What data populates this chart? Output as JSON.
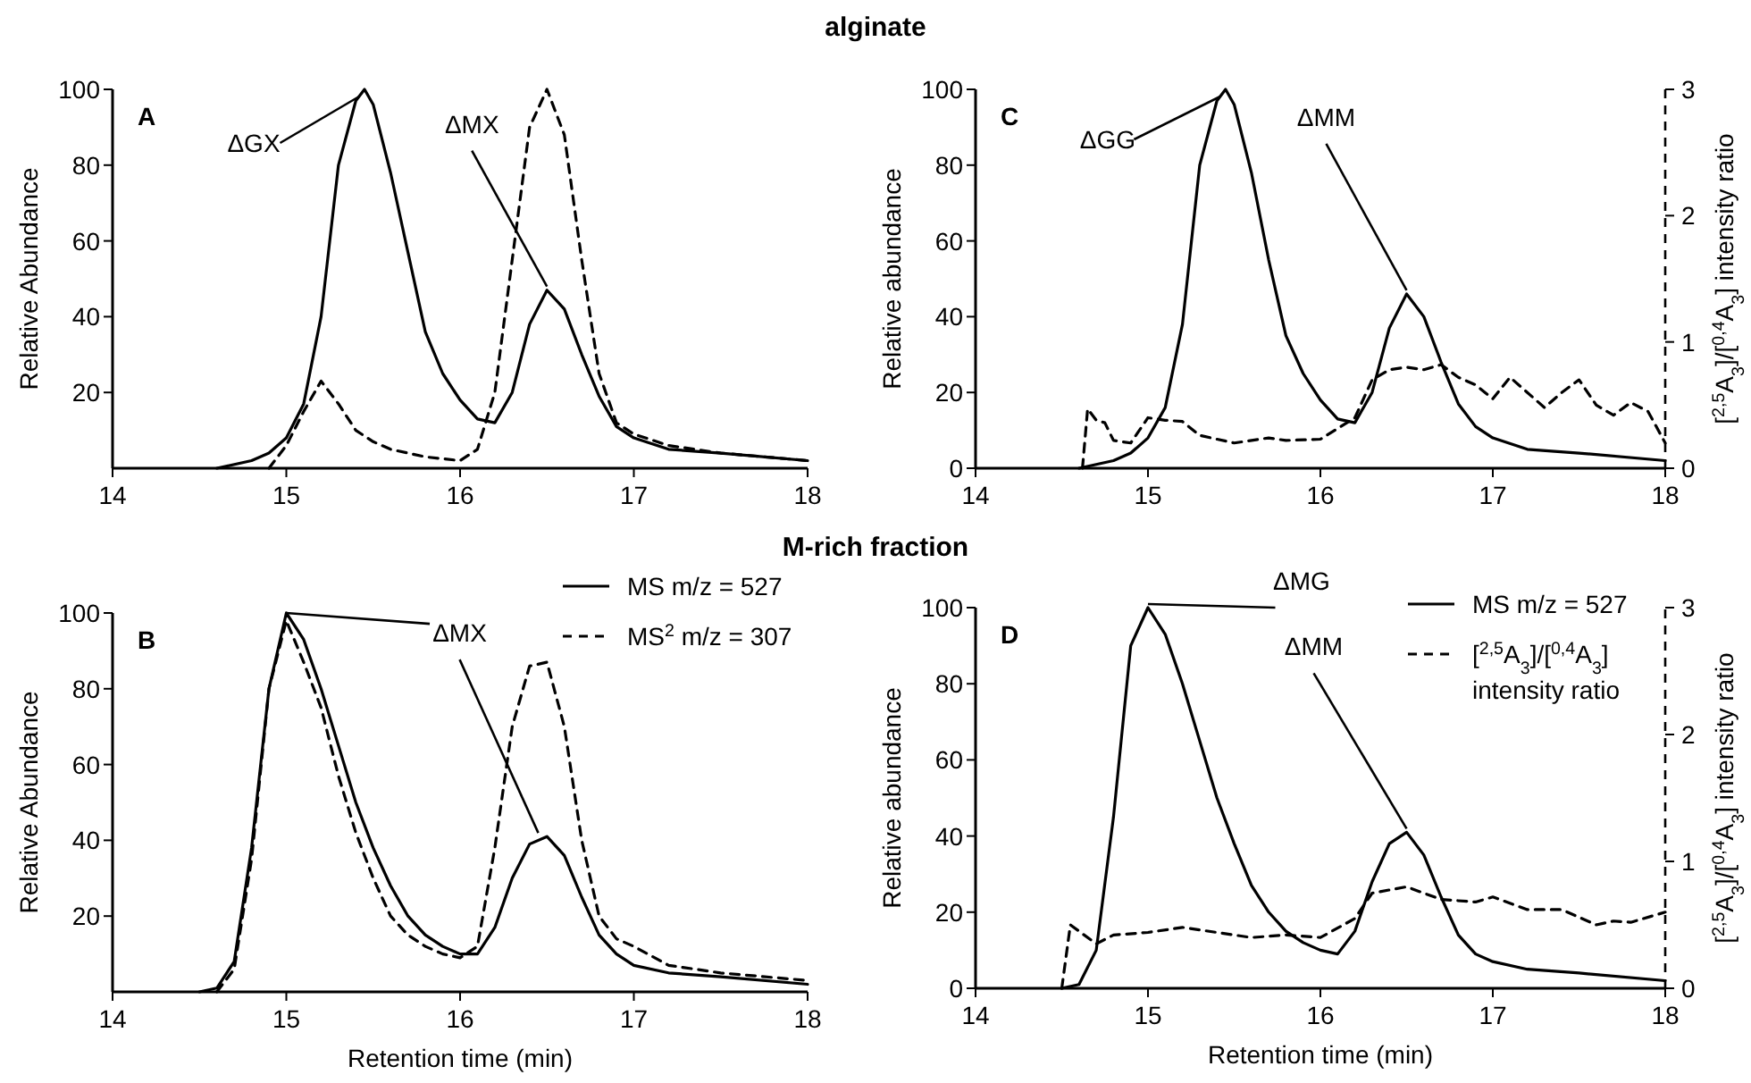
{
  "chart_data": [
    {
      "type": "line",
      "title": "alginate",
      "ylabel": "Relative Abundance",
      "xlim": [
        14,
        18
      ],
      "xticks": [
        14,
        15,
        16,
        17,
        18
      ],
      "ylim": [
        0,
        100
      ],
      "yticks": [
        20,
        40,
        60,
        80,
        100
      ],
      "annotations": [
        "A",
        {
          "text": "ΔGX",
          "x": 15.45,
          "y": 100
        },
        {
          "text": "ΔMX",
          "x": 16.5,
          "y": 47
        }
      ],
      "series": [
        {
          "color": "#000000",
          "line_style": "solid",
          "x": [
            14.6,
            14.8,
            14.9,
            15.0,
            15.1,
            15.2,
            15.3,
            15.4,
            15.45,
            15.5,
            15.6,
            15.7,
            15.8,
            15.9,
            16.0,
            16.1,
            16.2,
            16.3,
            16.4,
            16.5,
            16.6,
            16.7,
            16.8,
            16.9,
            17.0,
            17.2,
            17.5,
            18
          ],
          "values": [
            0,
            2,
            4,
            8,
            17,
            40,
            80,
            97,
            100,
            96,
            78,
            57,
            36,
            25,
            18,
            13,
            12,
            20,
            38,
            47,
            42,
            30,
            19,
            11,
            8,
            5,
            4,
            2
          ]
        },
        {
          "color": "#000000",
          "line_style": "dashed",
          "x": [
            14.9,
            15.0,
            15.1,
            15.2,
            15.3,
            15.4,
            15.5,
            15.6,
            15.8,
            16.0,
            16.1,
            16.2,
            16.3,
            16.4,
            16.5,
            16.6,
            16.7,
            16.8,
            16.9,
            17.0,
            17.2,
            17.5,
            18
          ],
          "values": [
            0,
            6,
            15,
            23,
            17,
            10,
            7,
            5,
            3,
            2,
            5,
            20,
            55,
            90,
            100,
            88,
            55,
            25,
            12,
            9,
            6,
            4,
            2
          ]
        }
      ]
    },
    {
      "type": "line",
      "ylabel": "Relative abundance",
      "y2label": "[$^{2,5}$A$_{3}$]/[$^{0,4}$A$_{3}$] intensity ratio",
      "xlim": [
        14,
        18
      ],
      "xticks": [
        14,
        15,
        16,
        17,
        18
      ],
      "ylim": [
        0,
        100
      ],
      "yticks": [
        0,
        20,
        40,
        60,
        80,
        100
      ],
      "y2lim": [
        0,
        3
      ],
      "y2ticks": [
        0,
        1,
        2,
        3
      ],
      "annotations": [
        "C",
        {
          "text": "ΔGG",
          "x": 15.45,
          "y": 100
        },
        {
          "text": "ΔMM",
          "x": 16.5,
          "y": 46
        }
      ],
      "series": [
        {
          "color": "#000000",
          "line_style": "solid",
          "x": [
            14.6,
            14.8,
            14.9,
            15.0,
            15.1,
            15.2,
            15.3,
            15.4,
            15.45,
            15.5,
            15.6,
            15.7,
            15.8,
            15.9,
            16.0,
            16.1,
            16.2,
            16.3,
            16.4,
            16.5,
            16.6,
            16.7,
            16.8,
            16.9,
            17.0,
            17.2,
            17.5,
            18
          ],
          "values": [
            0,
            2,
            4,
            8,
            16,
            38,
            80,
            97,
            100,
            96,
            78,
            55,
            35,
            25,
            18,
            13,
            12,
            20,
            37,
            46,
            40,
            28,
            17,
            11,
            8,
            5,
            4,
            2
          ]
        },
        {
          "color": "#000000",
          "line_style": "dashed",
          "axis": "y2",
          "x": [
            14.62,
            14.65,
            14.7,
            14.75,
            14.8,
            14.9,
            15.0,
            15.1,
            15.2,
            15.3,
            15.5,
            15.7,
            15.8,
            16.0,
            16.2,
            16.3,
            16.4,
            16.5,
            16.6,
            16.7,
            16.8,
            16.9,
            17.0,
            17.1,
            17.2,
            17.3,
            17.4,
            17.5,
            17.6,
            17.7,
            17.8,
            17.9,
            18
          ],
          "values": [
            0,
            0.47,
            0.38,
            0.36,
            0.22,
            0.2,
            0.4,
            0.38,
            0.37,
            0.26,
            0.2,
            0.24,
            0.22,
            0.23,
            0.4,
            0.7,
            0.78,
            0.8,
            0.78,
            0.82,
            0.72,
            0.66,
            0.55,
            0.72,
            0.6,
            0.48,
            0.6,
            0.7,
            0.5,
            0.42,
            0.52,
            0.45,
            0.2
          ]
        }
      ]
    },
    {
      "type": "line",
      "title": "M-rich fraction",
      "xlabel": "Retention time (min)",
      "ylabel": "Relative Abundance",
      "xlim": [
        14,
        18
      ],
      "xticks": [
        14,
        15,
        16,
        17,
        18
      ],
      "ylim": [
        0,
        100
      ],
      "yticks": [
        20,
        40,
        60,
        80,
        100
      ],
      "legend": "top right",
      "annotations": [
        "B",
        {
          "text": "ΔMX",
          "x": 16.45,
          "y": 41
        }
      ],
      "series": [
        {
          "name": "MS m/z = 527",
          "color": "#000000",
          "line_style": "solid",
          "x": [
            14.5,
            14.6,
            14.7,
            14.8,
            14.9,
            15.0,
            15.1,
            15.2,
            15.3,
            15.4,
            15.5,
            15.6,
            15.7,
            15.8,
            15.9,
            16.0,
            16.1,
            16.2,
            16.3,
            16.4,
            16.5,
            16.6,
            16.7,
            16.8,
            16.9,
            17.0,
            17.2,
            17.5,
            18
          ],
          "values": [
            0,
            1,
            8,
            38,
            80,
            100,
            93,
            80,
            65,
            50,
            38,
            28,
            20,
            15,
            12,
            10,
            10,
            17,
            30,
            39,
            41,
            36,
            25,
            15,
            10,
            7,
            5,
            4,
            2
          ]
        },
        {
          "name": "MS$^{2}$ m/z = 307",
          "color": "#000000",
          "line_style": "dashed",
          "x": [
            14.6,
            14.7,
            14.8,
            14.9,
            15.0,
            15.1,
            15.2,
            15.3,
            15.4,
            15.5,
            15.6,
            15.7,
            15.8,
            15.9,
            16.0,
            16.1,
            16.2,
            16.3,
            16.4,
            16.5,
            16.6,
            16.7,
            16.8,
            16.9,
            17.0,
            17.2,
            17.5,
            18
          ],
          "values": [
            0,
            6,
            35,
            80,
            98,
            87,
            75,
            57,
            42,
            30,
            20,
            15,
            12,
            10,
            9,
            12,
            38,
            70,
            86,
            87,
            70,
            40,
            20,
            14,
            12,
            7,
            5,
            3
          ]
        }
      ]
    },
    {
      "type": "line",
      "xlabel": "Retention time (min)",
      "ylabel": "Relative abundance",
      "y2label": "[$^{2,5}$A$_{3}$]/[$^{0,4}$A$_{3}$] intensity ratio",
      "xlim": [
        14,
        18
      ],
      "xticks": [
        14,
        15,
        16,
        17,
        18
      ],
      "ylim": [
        0,
        100
      ],
      "yticks": [
        0,
        20,
        40,
        60,
        80,
        100
      ],
      "y2lim": [
        0,
        3
      ],
      "y2ticks": [
        0,
        1,
        2,
        3
      ],
      "legend": "top right",
      "annotations": [
        "D",
        {
          "text": "ΔMG",
          "x": 15.0,
          "y": 100
        },
        {
          "text": "ΔMM",
          "x": 16.5,
          "y": 41
        }
      ],
      "series": [
        {
          "name": "MS m/z = 527",
          "color": "#000000",
          "line_style": "solid",
          "x": [
            14.5,
            14.6,
            14.7,
            14.8,
            14.9,
            15.0,
            15.1,
            15.2,
            15.3,
            15.4,
            15.5,
            15.6,
            15.7,
            15.8,
            15.9,
            16.0,
            16.1,
            16.2,
            16.3,
            16.4,
            16.5,
            16.6,
            16.7,
            16.8,
            16.9,
            17.0,
            17.2,
            17.5,
            18
          ],
          "values": [
            0,
            1,
            10,
            45,
            90,
            100,
            93,
            80,
            65,
            50,
            38,
            27,
            20,
            15,
            12,
            10,
            9,
            15,
            28,
            38,
            41,
            35,
            24,
            14,
            9,
            7,
            5,
            4,
            2
          ]
        },
        {
          "name": "[$^{2,5}$A$_{3}$]/[$^{0,4}$A$_{3}$] intensity ratio",
          "color": "#000000",
          "line_style": "dashed",
          "axis": "y2",
          "x": [
            14.5,
            14.55,
            14.6,
            14.7,
            14.8,
            15.0,
            15.2,
            15.4,
            15.6,
            15.8,
            16.0,
            16.2,
            16.3,
            16.5,
            16.7,
            16.9,
            17.0,
            17.2,
            17.4,
            17.6,
            17.7,
            17.8,
            18
          ],
          "values": [
            0,
            0.5,
            0.45,
            0.35,
            0.42,
            0.44,
            0.48,
            0.44,
            0.4,
            0.42,
            0.4,
            0.55,
            0.75,
            0.8,
            0.7,
            0.68,
            0.72,
            0.62,
            0.62,
            0.5,
            0.53,
            0.52,
            0.6
          ]
        }
      ]
    }
  ]
}
